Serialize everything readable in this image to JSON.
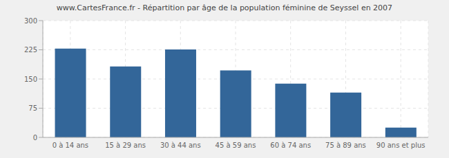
{
  "chart_data": {
    "type": "bar",
    "title": "www.CartesFrance.fr - Répartition par âge de la population féminine de Seyssel en 2007",
    "categories": [
      "0 à 14 ans",
      "15 à 29 ans",
      "30 à 44 ans",
      "45 à 59 ans",
      "60 à 74 ans",
      "75 à 89 ans",
      "90 ans et plus"
    ],
    "values": [
      228,
      182,
      226,
      172,
      138,
      115,
      25
    ],
    "color": "#336699",
    "ylim": [
      0,
      300
    ],
    "yticks": [
      0,
      75,
      150,
      225,
      300
    ],
    "grid": true
  }
}
